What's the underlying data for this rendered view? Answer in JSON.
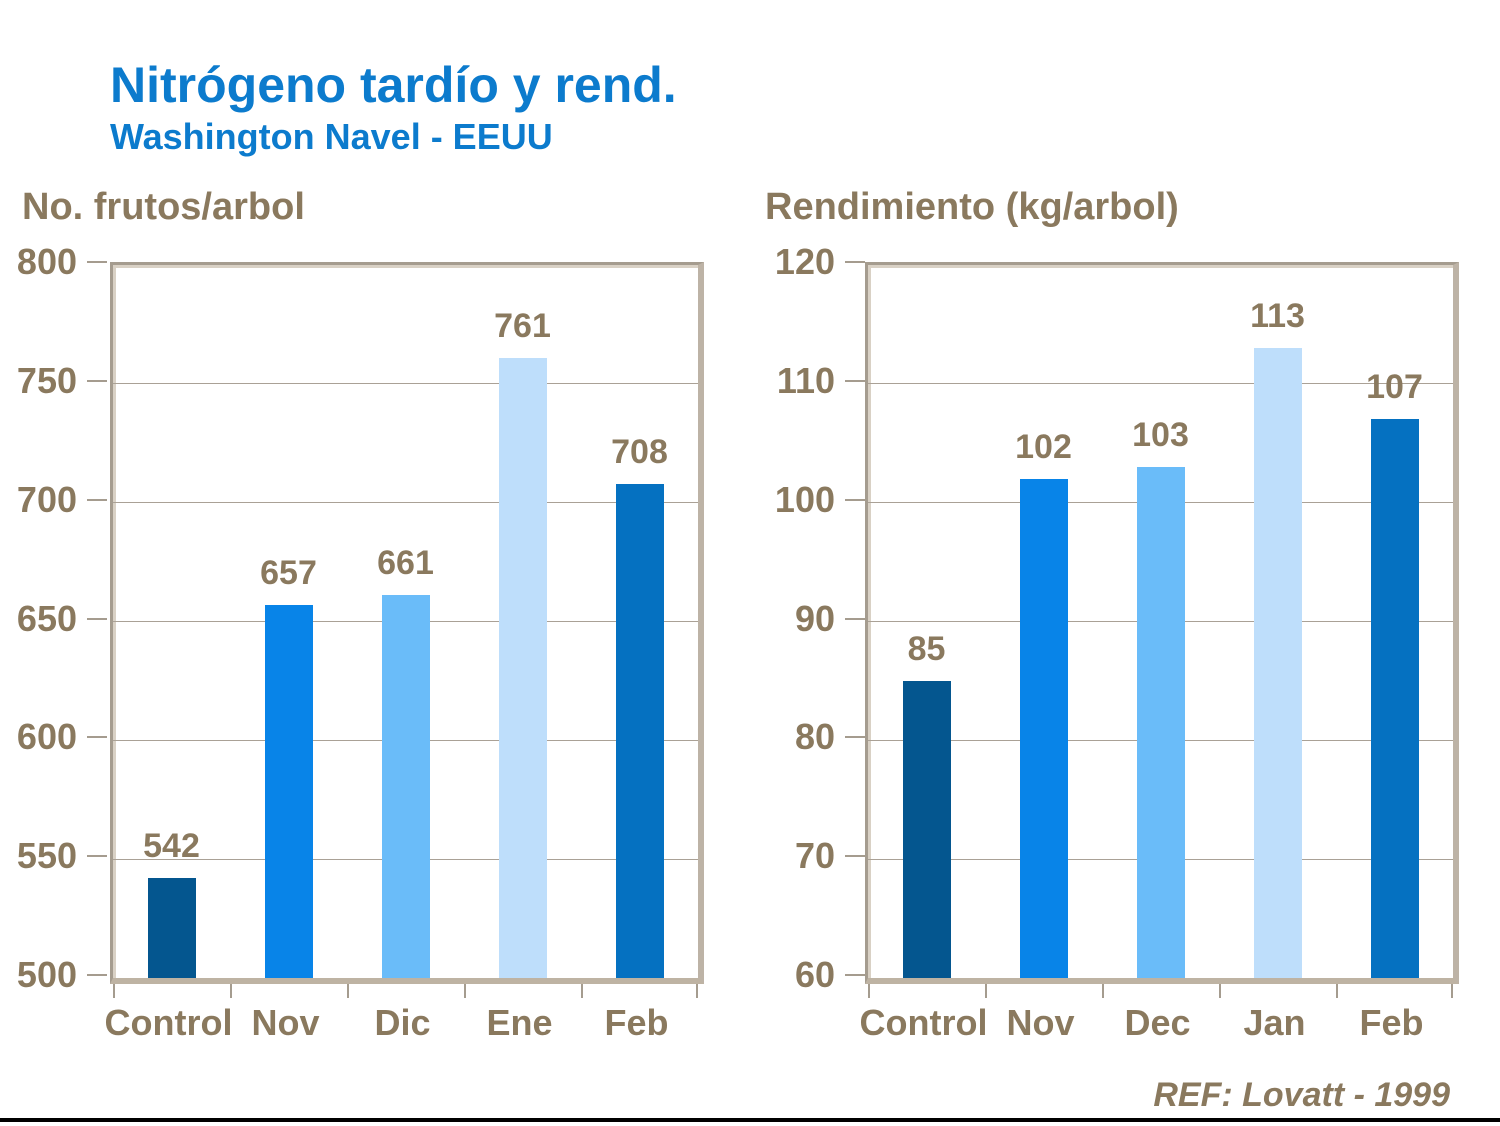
{
  "header": {
    "title": "Nitrógeno tardío y rend.",
    "subtitle": "Washington Navel - EEUU"
  },
  "footer": {
    "reference": "REF: Lovatt - 1999"
  },
  "colors": {
    "title_blue": "#0c7bcd",
    "text_taupe": "#8a795e",
    "bar_palette": [
      "#04568f",
      "#0884e8",
      "#6abcf9",
      "#bedefb",
      "#0571c1"
    ],
    "plot_border": "#a59c8f",
    "plot_shadow": "#bdb3a6",
    "gridline": "#aaa196",
    "bottom_rule": "#000000"
  },
  "chart_data": [
    {
      "type": "bar",
      "title": "No. frutos/arbol",
      "categories": [
        "Control",
        "Nov",
        "Dic",
        "Ene",
        "Feb"
      ],
      "values": [
        542,
        657,
        661,
        761,
        708
      ],
      "data_labels": [
        "542",
        "657",
        "661",
        "761",
        "708"
      ],
      "ylim": [
        500,
        800
      ],
      "ytick_step": 50,
      "yticks": [
        500,
        550,
        600,
        650,
        700,
        750,
        800
      ],
      "grid": true,
      "legend": false
    },
    {
      "type": "bar",
      "title": "Rendimiento (kg/arbol)",
      "categories": [
        "Control",
        "Nov",
        "Dec",
        "Jan",
        "Feb"
      ],
      "values": [
        85,
        102,
        103,
        113,
        107
      ],
      "data_labels": [
        "85",
        "102",
        "103",
        "113",
        "107"
      ],
      "ylim": [
        60,
        120
      ],
      "ytick_step": 10,
      "yticks": [
        60,
        70,
        80,
        90,
        100,
        110,
        120
      ],
      "grid": true,
      "legend": false
    }
  ]
}
